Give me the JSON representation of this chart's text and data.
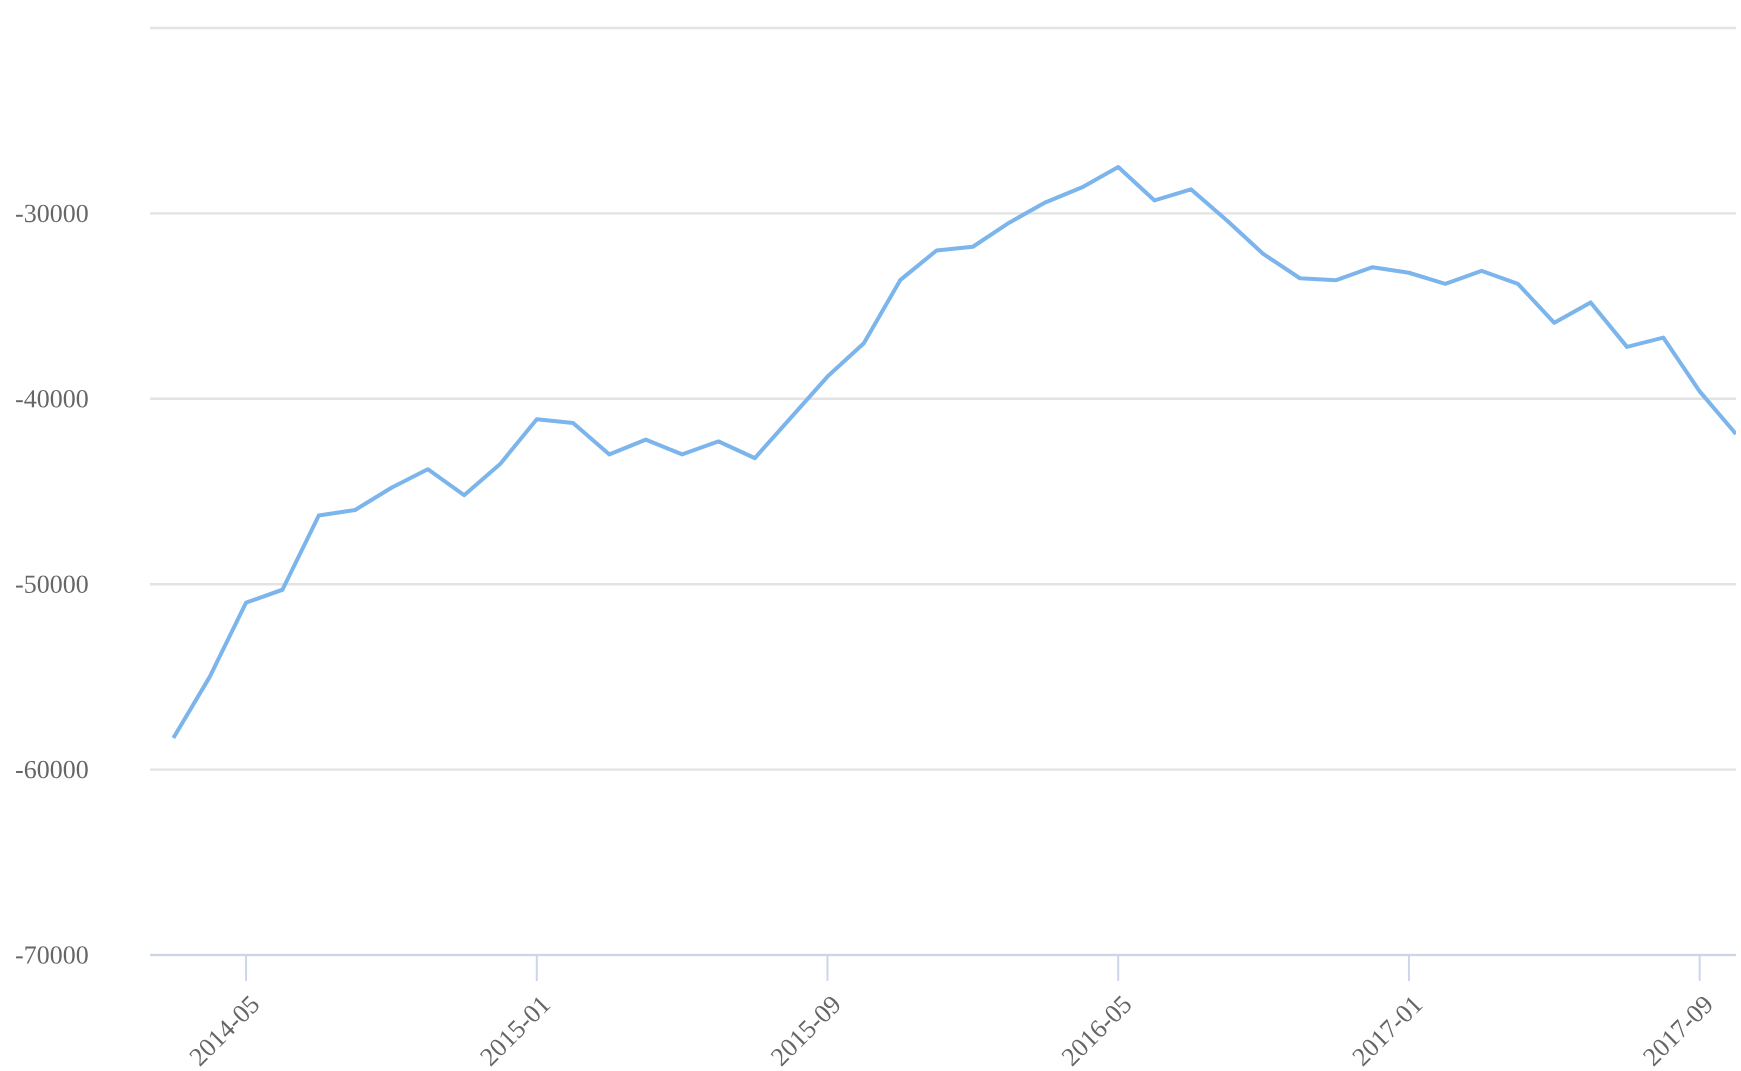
{
  "chart_data": {
    "type": "line",
    "x": [
      "2014-03",
      "2014-04",
      "2014-05",
      "2014-06",
      "2014-07",
      "2014-08",
      "2014-09",
      "2014-10",
      "2014-11",
      "2014-12",
      "2015-01",
      "2015-02",
      "2015-03",
      "2015-04",
      "2015-05",
      "2015-06",
      "2015-07",
      "2015-08",
      "2015-09",
      "2015-10",
      "2015-11",
      "2015-12",
      "2016-01",
      "2016-02",
      "2016-03",
      "2016-04",
      "2016-05",
      "2016-06",
      "2016-07",
      "2016-08",
      "2016-09",
      "2016-10",
      "2016-11",
      "2016-12",
      "2017-01",
      "2017-02",
      "2017-03",
      "2017-04",
      "2017-05",
      "2017-06",
      "2017-07",
      "2017-08",
      "2017-09",
      "2017-10"
    ],
    "series": [
      {
        "color": "#7cb5ec",
        "values": [
          -58300,
          -55000,
          -51000,
          -50300,
          -46300,
          -46000,
          -44800,
          -43800,
          -45200,
          -43500,
          -41100,
          -41300,
          -43000,
          -42200,
          -43000,
          -42300,
          -43200,
          -41000,
          -38800,
          -37000,
          -33600,
          -32000,
          -31800,
          -30500,
          -29400,
          -28600,
          -27500,
          -29300,
          -28700,
          -30400,
          -32200,
          -33500,
          -33600,
          -32900,
          -33200,
          -33800,
          -33100,
          -33800,
          -35900,
          -34800,
          -37200,
          -36700,
          -39600,
          -41900
        ]
      }
    ],
    "xlim": [
      "2014-02-11",
      "2017-10"
    ],
    "xticks": [
      "2014-05",
      "2015-01",
      "2015-09",
      "2016-05",
      "2017-01",
      "2017-09"
    ],
    "ylim": [
      -70000,
      -20000
    ],
    "yticks": [
      {
        "value": -20000,
        "label": null
      },
      -30000,
      -40000,
      -50000,
      -60000,
      -70000
    ],
    "grid": "y",
    "marker": "none",
    "line_style": "solid"
  }
}
